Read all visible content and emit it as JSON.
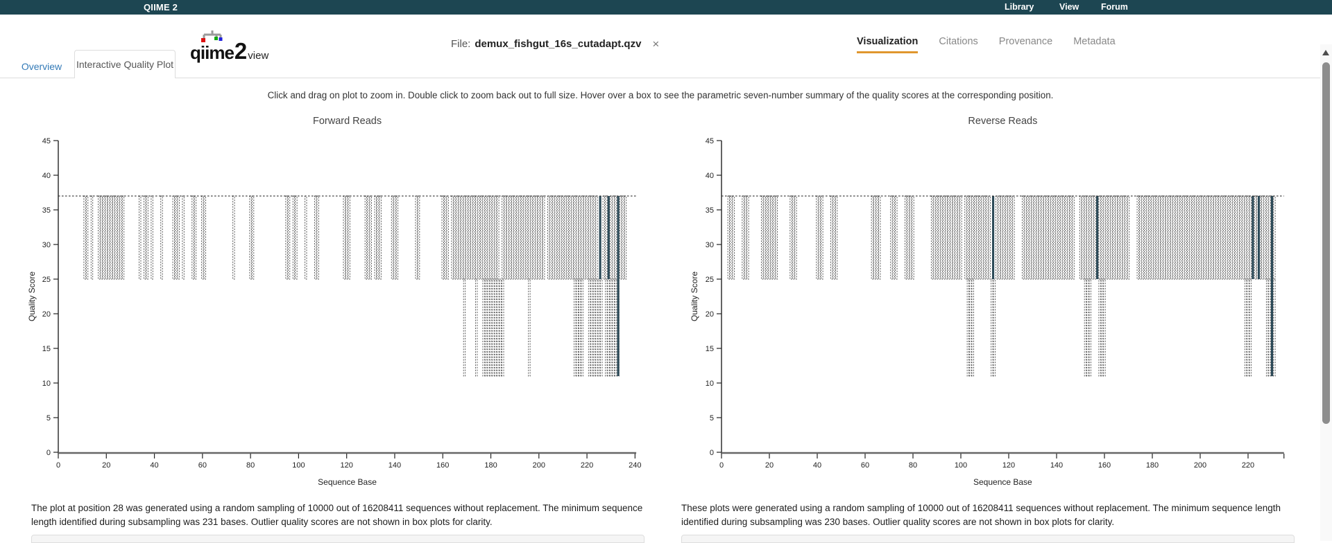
{
  "topbar": {
    "brand": "QIIME 2",
    "links": [
      {
        "label": "Library"
      },
      {
        "label": "View"
      },
      {
        "label": "Forum"
      }
    ],
    "background_color": "#1d4652"
  },
  "header": {
    "logo": {
      "text_main": "qiime",
      "text_2": "2",
      "text_sub": "view",
      "dot_colors": [
        "#dd1111",
        "#11aa11",
        "#2222dd"
      ]
    },
    "file": {
      "prefix": "File:",
      "name": "demux_fishgut_16s_cutadapt.qzv",
      "close_label": "×"
    },
    "nav_tabs": [
      {
        "label": "Visualization",
        "active": true
      },
      {
        "label": "Citations",
        "active": false
      },
      {
        "label": "Provenance",
        "active": false
      },
      {
        "label": "Metadata",
        "active": false
      }
    ],
    "accent_color": "#e0962e"
  },
  "tabs": [
    {
      "label": "Overview",
      "active": false
    },
    {
      "label": "Interactive Quality Plot",
      "active": true
    }
  ],
  "instruction": "Click and drag on plot to zoom in. Double click to zoom back out to full size. Hover over a box to see the parametric seven-number summary of the quality scores at the corresponding position.",
  "chart_data": [
    {
      "type": "boxplot",
      "title": "Forward Reads",
      "xlabel": "Sequence Base",
      "ylabel": "Quality Score",
      "x_ticks": [
        0,
        20,
        40,
        60,
        80,
        100,
        120,
        140,
        160,
        180,
        200,
        220,
        240
      ],
      "xlim": [
        0,
        240.5
      ],
      "x_end": 240.5,
      "end_tick": false,
      "y_ticks": [
        0,
        5,
        10,
        15,
        20,
        25,
        30,
        35,
        40,
        45
      ],
      "ylim": [
        0,
        45
      ],
      "median_line": 37,
      "box_top": 37,
      "box_bottom": 25,
      "whisker_low": 11,
      "box_positions": [
        [
          11,
          12
        ],
        [
          14,
          14
        ],
        [
          17,
          27
        ],
        [
          34,
          34
        ],
        [
          36,
          37
        ],
        [
          39,
          39
        ],
        [
          43,
          43
        ],
        [
          48,
          50
        ],
        [
          52,
          52
        ],
        [
          56,
          57
        ],
        [
          60,
          61
        ],
        [
          73,
          73
        ],
        [
          80,
          81
        ],
        [
          95,
          96
        ],
        [
          98,
          99
        ],
        [
          103,
          103
        ],
        [
          107,
          108
        ],
        [
          119,
          121
        ],
        [
          128,
          130
        ],
        [
          132,
          134
        ],
        [
          139,
          141
        ],
        [
          149,
          150
        ],
        [
          160,
          162
        ],
        [
          164,
          183
        ],
        [
          185,
          202
        ],
        [
          204,
          224
        ],
        [
          227,
          228
        ],
        [
          230,
          232
        ],
        [
          234,
          236
        ]
      ],
      "low_whisker_positions": [
        [
          169,
          169
        ],
        [
          174,
          174
        ],
        [
          177,
          185
        ],
        [
          196,
          196
        ],
        [
          215,
          218
        ],
        [
          221,
          226
        ],
        [
          228,
          233
        ]
      ],
      "solid_bars": [
        {
          "x": 225.5,
          "top": 37,
          "bottom": 25
        },
        {
          "x": 229,
          "top": 37,
          "bottom": 25
        },
        {
          "x": 233,
          "top": 37,
          "bottom": 11
        }
      ],
      "solid_color": "#2d4b59",
      "caption": "The plot at position 28 was generated using a random sampling of 10000 out of 16208411 sequences without replacement. The minimum sequence length identified during subsampling was 231 bases. Outlier quality scores are not shown in box plots for clarity."
    },
    {
      "type": "boxplot",
      "title": "Reverse Reads",
      "xlabel": "Sequence Base",
      "ylabel": "Quality Score",
      "x_ticks": [
        0,
        20,
        40,
        60,
        80,
        100,
        120,
        140,
        160,
        180,
        200,
        220
      ],
      "xlim": [
        0,
        235
      ],
      "x_end": 235,
      "end_tick": true,
      "y_ticks": [
        0,
        5,
        10,
        15,
        20,
        25,
        30,
        35,
        40,
        45
      ],
      "ylim": [
        0,
        45
      ],
      "median_line": 37,
      "box_top": 37,
      "box_bottom": 25,
      "whisker_low": 11,
      "box_positions": [
        [
          3,
          5
        ],
        [
          9,
          11
        ],
        [
          17,
          23
        ],
        [
          29,
          31
        ],
        [
          40,
          42
        ],
        [
          46,
          48
        ],
        [
          63,
          66
        ],
        [
          71,
          73
        ],
        [
          77,
          80
        ],
        [
          88,
          100
        ],
        [
          102,
          112
        ],
        [
          115,
          122
        ],
        [
          126,
          147
        ],
        [
          150,
          156
        ],
        [
          158,
          170
        ],
        [
          174,
          221
        ],
        [
          223,
          231
        ]
      ],
      "low_whisker_positions": [
        [
          103,
          105
        ],
        [
          113,
          114
        ],
        [
          152,
          154
        ],
        [
          158,
          160
        ],
        [
          219,
          221
        ],
        [
          228,
          231
        ]
      ],
      "solid_bars": [
        {
          "x": 113.5,
          "top": 37,
          "bottom": 25
        },
        {
          "x": 157,
          "top": 37,
          "bottom": 25
        },
        {
          "x": 222,
          "top": 37,
          "bottom": 25
        },
        {
          "x": 224.5,
          "top": 37,
          "bottom": 25
        },
        {
          "x": 230,
          "top": 37,
          "bottom": 11
        }
      ],
      "solid_color": "#2d4b59",
      "caption": "These plots were generated using a random sampling of 10000 out of 16208411 sequences without replacement. The minimum sequence length identified during subsampling was 230 bases. Outlier quality scores are not shown in box plots for clarity."
    }
  ]
}
